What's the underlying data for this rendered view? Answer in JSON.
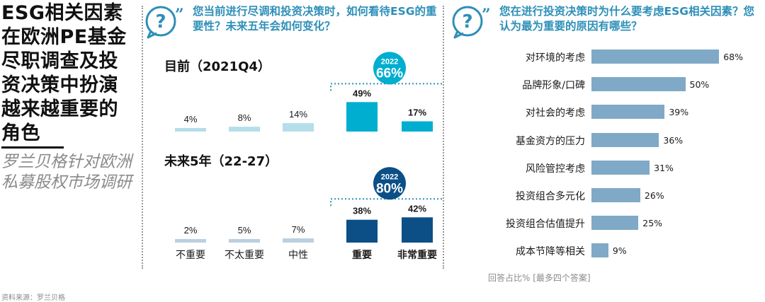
{
  "left": {
    "title": "ESG相关因素在欧洲PE基金尽职调查及投资决策中扮演越来越重要的角色",
    "subtitle": "罗兰贝格针对欧洲私募股权市场调研",
    "source": "资料来源：罗兰贝格"
  },
  "middle": {
    "question": "您当前进行尽调和投资决策时，如何看待ESG的重要性？未来五年会如何变化？",
    "categories": [
      "不重要",
      "不太重要",
      "中性",
      "重要",
      "非常重要"
    ],
    "current": {
      "heading": "目前（2021Q4）",
      "bubble_year": "2022",
      "bubble_value": "66%",
      "values": [
        4,
        8,
        14,
        49,
        17
      ],
      "labels": [
        "4%",
        "8%",
        "14%",
        "49%",
        "17%"
      ]
    },
    "future": {
      "heading": "未来5年（22-27）",
      "bubble_year": "2022",
      "bubble_value": "80%",
      "values": [
        2,
        5,
        7,
        38,
        42
      ],
      "labels": [
        "2%",
        "5%",
        "7%",
        "38%",
        "42%"
      ]
    }
  },
  "right": {
    "question": "您在进行投资决策时为什么要考虑ESG相关因素？您认为最为重要的原因有哪些？",
    "note": "回答占比% [最多四个答案]"
  },
  "chart_data": [
    {
      "type": "bar",
      "title": "目前（2021Q4）",
      "categories": [
        "不重要",
        "不太重要",
        "中性",
        "重要",
        "非常重要"
      ],
      "values": [
        4,
        8,
        14,
        49,
        17
      ],
      "highlight": {
        "categories": [
          "重要",
          "非常重要"
        ],
        "label": "2022",
        "total": 66
      },
      "colors": {
        "light": "#b4deea",
        "dark": "#00aecf"
      }
    },
    {
      "type": "bar",
      "title": "未来5年（22-27）",
      "categories": [
        "不重要",
        "不太重要",
        "中性",
        "重要",
        "非常重要"
      ],
      "values": [
        2,
        5,
        7,
        38,
        42
      ],
      "highlight": {
        "categories": [
          "重要",
          "非常重要"
        ],
        "label": "2022",
        "total": 80
      },
      "colors": {
        "light": "#bccfdf",
        "dark": "#0b4f86"
      }
    },
    {
      "type": "bar",
      "orientation": "horizontal",
      "categories": [
        "对环境的考虑",
        "品牌形象/口碑",
        "对社会的考虑",
        "基金资方的压力",
        "风险管控考虑",
        "投资组合多元化",
        "投资组合估值提升",
        "成本节降等相关"
      ],
      "values": [
        68,
        50,
        39,
        36,
        31,
        26,
        25,
        9
      ],
      "labels": [
        "68%",
        "50%",
        "39%",
        "36%",
        "31%",
        "26%",
        "25%",
        "9%"
      ],
      "colors": {
        "bar": "#7fa9c7"
      }
    }
  ],
  "icons": [
    "question-bubble-icon",
    "quote-mark-icon"
  ]
}
